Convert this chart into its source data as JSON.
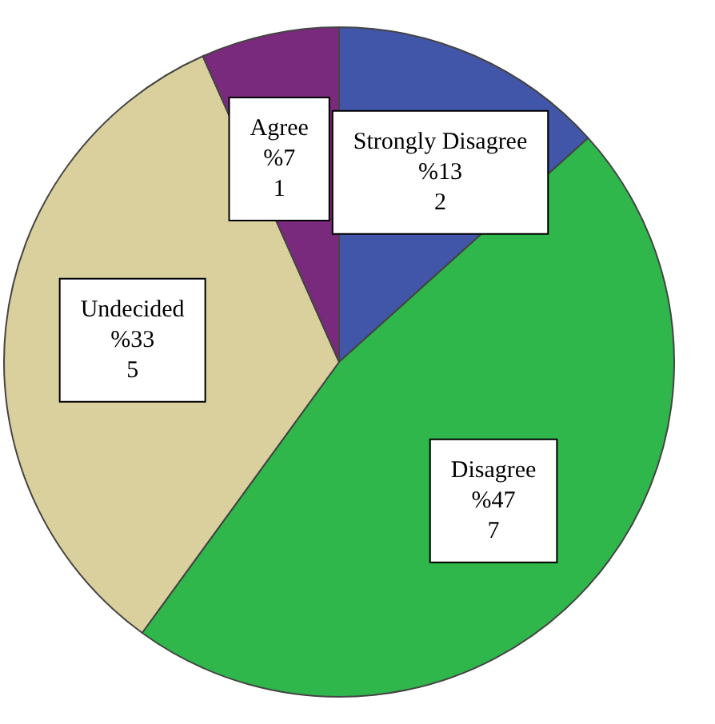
{
  "chart_data": {
    "type": "pie",
    "categories": [
      "Strongly Disagree",
      "Disagree",
      "Undecided",
      "Agree"
    ],
    "values": [
      2,
      7,
      5,
      1
    ],
    "colors": [
      "#4156a8",
      "#2fb74c",
      "#d9d09d",
      "#7a2a7c"
    ],
    "value_labels": [
      "%13\n2",
      "%47\n7",
      "%33\n5",
      "%7\n1"
    ],
    "legend": false
  }
}
